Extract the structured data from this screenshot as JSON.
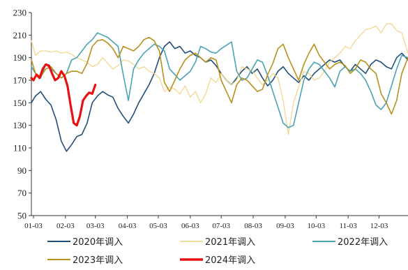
{
  "chart_data": {
    "type": "line",
    "title": "",
    "xlabel": "",
    "ylabel": "",
    "ylim": [
      50,
      230
    ],
    "y_ticks": [
      50,
      70,
      90,
      110,
      130,
      150,
      170,
      190,
      210,
      230
    ],
    "x_ticks": [
      "01-03",
      "02-03",
      "03-03",
      "04-03",
      "05-03",
      "06-03",
      "07-03",
      "08-03",
      "09-03",
      "10-03",
      "11-03",
      "12-03"
    ],
    "grid": false,
    "legend_position": "bottom",
    "series": [
      {
        "name": "2020年调入",
        "color": "#1f4e79",
        "width": 1.6,
        "x": [
          1,
          5,
          10,
          15,
          20,
          25,
          30,
          35,
          40,
          45,
          50,
          55,
          60,
          65,
          70,
          75,
          80,
          85,
          90,
          95,
          100,
          105,
          110,
          115,
          120,
          125,
          130,
          135,
          140,
          145,
          150,
          155,
          160,
          165,
          170,
          175,
          180,
          185,
          190,
          195,
          200,
          205,
          210,
          215,
          220,
          225,
          230,
          235,
          240,
          245,
          250,
          255,
          260,
          265,
          270,
          275,
          280,
          285,
          290,
          295,
          300,
          305,
          310,
          315,
          320,
          325,
          330,
          335,
          340,
          345,
          350,
          355,
          360,
          366
        ],
        "y": [
          150,
          156,
          160,
          153,
          148,
          135,
          116,
          107,
          113,
          120,
          122,
          132,
          150,
          156,
          160,
          157,
          155,
          145,
          138,
          132,
          140,
          150,
          158,
          166,
          176,
          190,
          200,
          204,
          198,
          200,
          194,
          196,
          192,
          190,
          186,
          188,
          183,
          176,
          170,
          166,
          172,
          178,
          182,
          176,
          180,
          172,
          165,
          170,
          178,
          182,
          176,
          172,
          168,
          174,
          170,
          176,
          180,
          184,
          188,
          186,
          188,
          182,
          178,
          184,
          180,
          176,
          184,
          188,
          186,
          182,
          180,
          190,
          194,
          188
        ]
      },
      {
        "name": "2021年调入",
        "color": "#f0d890",
        "width": 1.3,
        "x": [
          1,
          5,
          10,
          15,
          20,
          25,
          30,
          35,
          40,
          45,
          50,
          55,
          60,
          65,
          70,
          75,
          80,
          85,
          90,
          95,
          100,
          105,
          110,
          115,
          120,
          125,
          130,
          135,
          140,
          145,
          150,
          155,
          160,
          165,
          170,
          175,
          180,
          185,
          190,
          195,
          200,
          205,
          210,
          215,
          220,
          225,
          230,
          235,
          240,
          245,
          250,
          255,
          260,
          265,
          270,
          275,
          280,
          285,
          290,
          295,
          300,
          305,
          310,
          315,
          320,
          325,
          330,
          335,
          340,
          345,
          350,
          355,
          360,
          366
        ],
        "y": [
          205,
          192,
          196,
          196,
          195,
          196,
          194,
          195,
          193,
          190,
          188,
          186,
          182,
          184,
          190,
          185,
          180,
          183,
          188,
          187,
          184,
          180,
          182,
          178,
          176,
          172,
          160,
          164,
          162,
          158,
          165,
          155,
          160,
          150,
          158,
          172,
          168,
          176,
          170,
          166,
          170,
          182,
          180,
          178,
          172,
          166,
          170,
          176,
          172,
          152,
          122,
          150,
          164,
          178,
          176,
          170,
          172,
          178,
          186,
          190,
          194,
          200,
          198,
          205,
          210,
          215,
          216,
          218,
          212,
          220,
          220,
          214,
          212,
          194
        ]
      },
      {
        "name": "2022年调入",
        "color": "#4aa3b5",
        "width": 1.6,
        "x": [
          1,
          5,
          10,
          15,
          20,
          25,
          30,
          35,
          40,
          45,
          50,
          55,
          60,
          65,
          70,
          75,
          80,
          85,
          90,
          95,
          100,
          105,
          110,
          115,
          120,
          125,
          130,
          135,
          140,
          145,
          150,
          155,
          160,
          165,
          170,
          175,
          180,
          185,
          190,
          195,
          200,
          205,
          210,
          215,
          220,
          225,
          230,
          235,
          240,
          245,
          250,
          255,
          260,
          265,
          270,
          275,
          280,
          285,
          290,
          295,
          300,
          305,
          310,
          315,
          320,
          325,
          330,
          335,
          340,
          345,
          350,
          355,
          360,
          366
        ],
        "y": [
          182,
          176,
          172,
          184,
          180,
          176,
          172,
          176,
          188,
          190,
          196,
          202,
          206,
          212,
          210,
          208,
          204,
          200,
          175,
          152,
          180,
          188,
          194,
          198,
          202,
          200,
          196,
          180,
          175,
          170,
          174,
          178,
          186,
          200,
          198,
          195,
          194,
          198,
          201,
          204,
          178,
          170,
          172,
          180,
          188,
          186,
          174,
          160,
          146,
          132,
          128,
          130,
          150,
          170,
          180,
          186,
          184,
          178,
          172,
          164,
          178,
          182,
          178,
          180,
          176,
          170,
          160,
          148,
          144,
          150,
          165,
          180,
          192,
          190
        ]
      },
      {
        "name": "2023年调入",
        "color": "#b8901a",
        "width": 1.6,
        "x": [
          1,
          5,
          10,
          15,
          20,
          25,
          30,
          35,
          40,
          45,
          50,
          55,
          60,
          65,
          70,
          75,
          80,
          85,
          90,
          95,
          100,
          105,
          110,
          115,
          120,
          125,
          130,
          135,
          140,
          145,
          150,
          155,
          160,
          165,
          170,
          175,
          180,
          185,
          190,
          195,
          200,
          205,
          210,
          215,
          220,
          225,
          230,
          235,
          240,
          245,
          250,
          255,
          260,
          265,
          270,
          275,
          280,
          285,
          290,
          295,
          300,
          305,
          310,
          315,
          320,
          325,
          330,
          335,
          340,
          345,
          350,
          355,
          360,
          366
        ],
        "y": [
          188,
          176,
          173,
          180,
          182,
          176,
          172,
          176,
          178,
          178,
          176,
          185,
          200,
          205,
          206,
          203,
          198,
          190,
          200,
          198,
          196,
          200,
          206,
          208,
          205,
          196,
          168,
          160,
          170,
          180,
          188,
          192,
          194,
          190,
          186,
          190,
          188,
          170,
          160,
          150,
          166,
          172,
          170,
          165,
          160,
          162,
          175,
          185,
          198,
          202,
          190,
          180,
          170,
          184,
          194,
          202,
          192,
          186,
          180,
          184,
          186,
          183,
          176,
          180,
          188,
          186,
          180,
          176,
          158,
          150,
          140,
          152,
          176,
          190
        ]
      },
      {
        "name": "2024年调入",
        "color": "#e81010",
        "width": 3.2,
        "x": [
          1,
          3,
          6,
          9,
          12,
          15,
          18,
          21,
          24,
          27,
          30,
          33,
          36,
          39,
          42,
          45,
          48,
          51,
          54,
          57,
          60,
          63
        ],
        "y": [
          172,
          170,
          175,
          172,
          180,
          184,
          183,
          176,
          170,
          172,
          178,
          174,
          165,
          148,
          132,
          130,
          138,
          152,
          156,
          159,
          158,
          166
        ]
      }
    ]
  }
}
